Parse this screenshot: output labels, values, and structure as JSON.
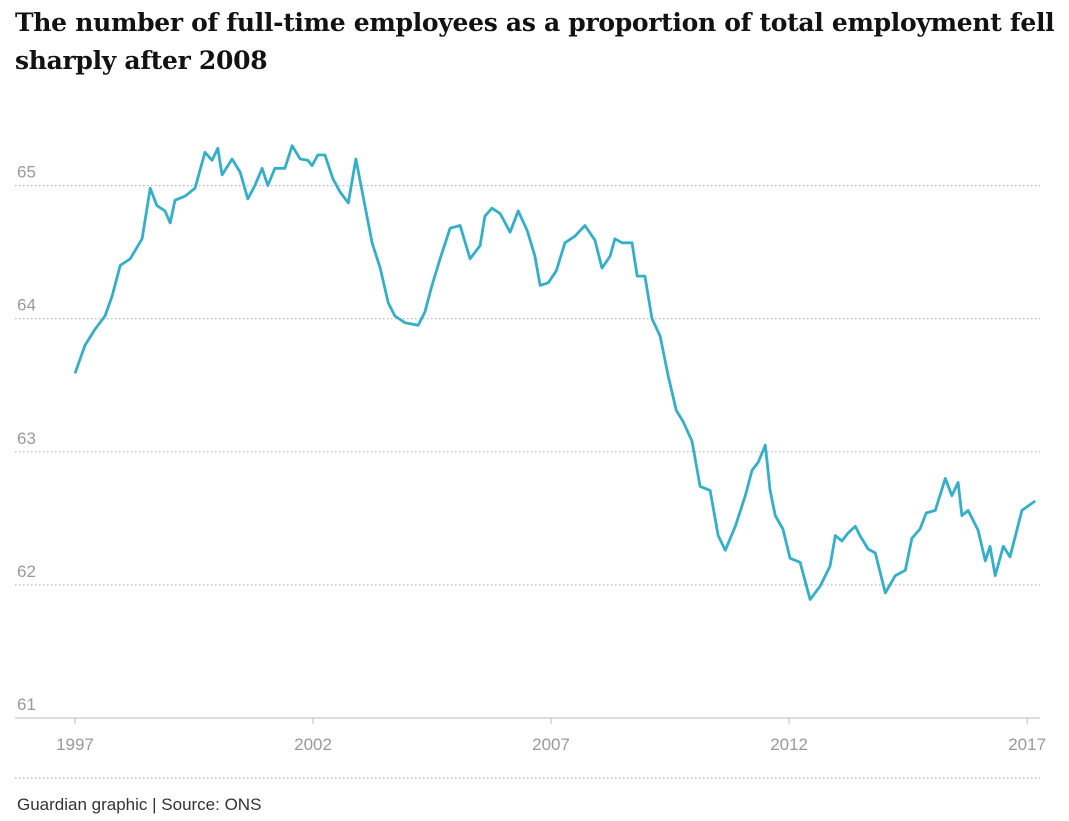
{
  "chart_data": {
    "type": "line",
    "title": "The number of full-time employees as a proportion of total employment fell sharply after 2008",
    "source": "Guardian graphic | Source: ONS",
    "series": [
      {
        "name": "Full-time employees share",
        "color": "#35aec8",
        "x": [
          1997.0,
          1997.21,
          1997.42,
          1997.63,
          1997.78,
          1997.95,
          1998.16,
          1998.41,
          1998.58,
          1998.72,
          1998.89,
          1999.0,
          1999.1,
          1999.31,
          1999.52,
          1999.73,
          1999.88,
          2000.0,
          2000.09,
          2000.3,
          2000.47,
          2000.63,
          2000.78,
          2000.93,
          2001.05,
          2001.2,
          2001.41,
          2001.56,
          2001.73,
          2001.89,
          2001.98,
          2002.1,
          2002.25,
          2002.42,
          2002.57,
          2002.74,
          2002.9,
          2003.09,
          2003.24,
          2003.41,
          2003.58,
          2003.72,
          2003.93,
          2004.21,
          2004.35,
          2004.5,
          2004.67,
          2004.88,
          2005.09,
          2005.3,
          2005.51,
          2005.61,
          2005.76,
          2005.93,
          2006.14,
          2006.31,
          2006.5,
          2006.66,
          2006.77,
          2006.94,
          2007.11,
          2007.29,
          2007.5,
          2007.71,
          2007.92,
          2008.07,
          2008.24,
          2008.34,
          2008.49,
          2008.7,
          2008.81,
          2008.97,
          2009.12,
          2009.29,
          2009.46,
          2009.63,
          2009.77,
          2009.96,
          2010.13,
          2010.34,
          2010.51,
          2010.66,
          2010.87,
          2011.08,
          2011.22,
          2011.35,
          2011.5,
          2011.6,
          2011.71,
          2011.87,
          2012.02,
          2012.23,
          2012.44,
          2012.65,
          2012.86,
          2012.97,
          2013.11,
          2013.24,
          2013.39,
          2013.49,
          2013.66,
          2013.81,
          2014.02,
          2014.23,
          2014.44,
          2014.58,
          2014.75,
          2014.88,
          2015.07,
          2015.28,
          2015.42,
          2015.55,
          2015.63,
          2015.76,
          2015.97,
          2016.12,
          2016.22,
          2016.33,
          2016.5,
          2016.64,
          2016.89,
          2017.17
        ],
        "values": [
          63.59,
          63.8,
          63.92,
          64.02,
          64.17,
          64.4,
          64.45,
          64.6,
          64.98,
          64.85,
          64.81,
          64.72,
          64.89,
          64.92,
          64.98,
          65.25,
          65.19,
          65.28,
          65.08,
          65.2,
          65.1,
          64.9,
          65.0,
          65.13,
          65.0,
          65.13,
          65.13,
          65.3,
          65.2,
          65.19,
          65.15,
          65.23,
          65.23,
          65.05,
          64.95,
          64.87,
          65.2,
          64.85,
          64.57,
          64.38,
          64.12,
          64.02,
          63.97,
          63.95,
          64.05,
          64.25,
          64.45,
          64.68,
          64.7,
          64.45,
          64.55,
          64.77,
          64.83,
          64.79,
          64.65,
          64.81,
          64.66,
          64.47,
          64.25,
          64.27,
          64.36,
          64.57,
          64.62,
          64.7,
          64.59,
          64.38,
          64.47,
          64.6,
          64.57,
          64.57,
          64.32,
          64.32,
          64.0,
          63.87,
          63.57,
          63.31,
          63.23,
          63.08,
          62.74,
          62.71,
          62.37,
          62.26,
          62.44,
          62.67,
          62.86,
          62.92,
          63.05,
          62.71,
          62.52,
          62.42,
          62.2,
          62.17,
          61.89,
          61.99,
          62.14,
          62.37,
          62.33,
          62.39,
          62.44,
          62.37,
          62.27,
          62.24,
          61.94,
          62.07,
          62.11,
          62.35,
          62.42,
          62.54,
          62.56,
          62.8,
          62.67,
          62.77,
          62.52,
          62.56,
          62.41,
          62.18,
          62.29,
          62.07,
          62.29,
          62.21,
          62.56,
          62.63
        ]
      }
    ],
    "xlim": [
      1995.74,
      2017.27
    ],
    "xticks": [
      1997,
      2002,
      2007,
      2012,
      2017
    ],
    "ylim": [
      61,
      65.35
    ],
    "yticks": [
      61,
      62,
      63,
      64,
      65
    ],
    "grid": true
  }
}
